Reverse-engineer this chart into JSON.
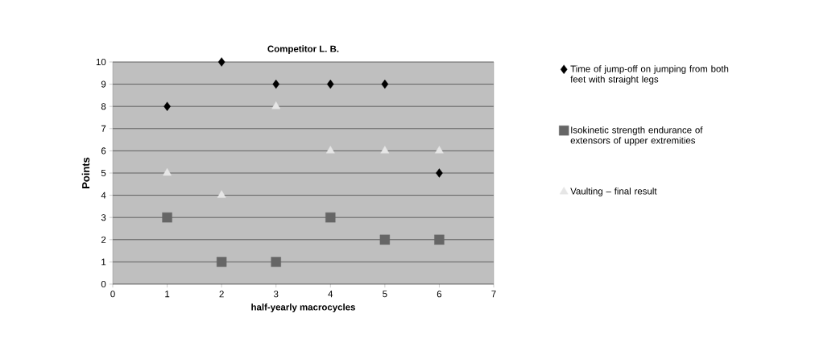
{
  "chart_data": {
    "type": "scatter",
    "title": "Competitor L. B.",
    "xlabel": "half-yearly macrocycles",
    "ylabel": "Points",
    "x": [
      1,
      2,
      3,
      4,
      5,
      6
    ],
    "series": [
      {
        "name": "Time of jump-off on jumping from both feet with straight legs",
        "color": "#000000",
        "marker": "diamond",
        "values": [
          8,
          10,
          9,
          9,
          9,
          5
        ]
      },
      {
        "name": "Isokinetic strength endurance of extensors of upper extremities",
        "color": "#666666",
        "marker": "square",
        "values": [
          3,
          1,
          1,
          3,
          2,
          2
        ]
      },
      {
        "name": "Vaulting – final result",
        "color": "#e6e6e6",
        "marker": "triangle",
        "values": [
          5,
          4,
          8,
          6,
          6,
          6
        ]
      }
    ],
    "xlim": [
      0,
      7
    ],
    "ylim": [
      0,
      10
    ],
    "xticks": [
      0,
      1,
      2,
      3,
      4,
      5,
      6,
      7
    ],
    "yticks": [
      0,
      1,
      2,
      3,
      4,
      5,
      6,
      7,
      8,
      9,
      10
    ],
    "grid": "y",
    "legend": "right"
  }
}
